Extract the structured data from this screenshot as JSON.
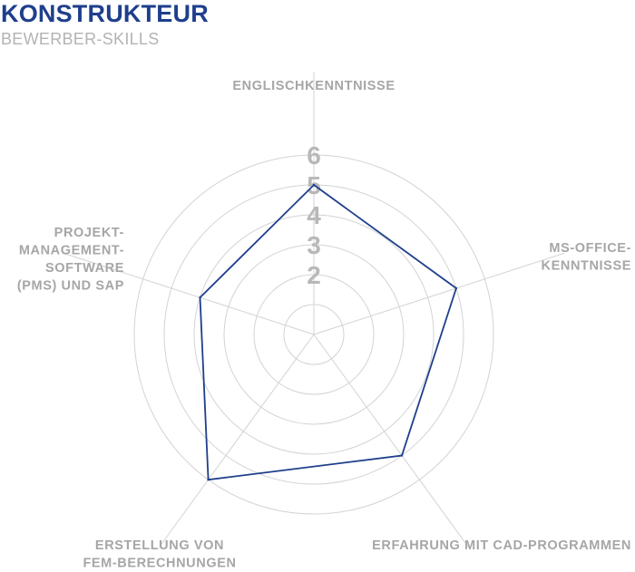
{
  "chart_data": {
    "type": "radar",
    "title": "KONSTRUKTEUR",
    "subtitle": "BEWERBER-SKILLS",
    "axes": [
      [
        "ENGLISCHKENNTNISSE"
      ],
      [
        "MS-OFFICE-",
        "KENNTNISSE"
      ],
      [
        "ERFAHRUNG MIT CAD-PROGRAMMEN"
      ],
      [
        "ERSTELLUNG VON",
        "FEM-BERECHNUNGEN"
      ],
      [
        "PROJEKT-",
        "MANAGEMENT-",
        "SOFTWARE",
        "(PMS) UND SAP"
      ]
    ],
    "rmin": 0,
    "rmax": 6,
    "ticks": [
      2,
      3,
      4,
      5,
      6
    ],
    "ring_count": 6,
    "series": [
      {
        "values": [
          5,
          5,
          5,
          6,
          4
        ],
        "color": "#1e3f8c"
      }
    ]
  }
}
